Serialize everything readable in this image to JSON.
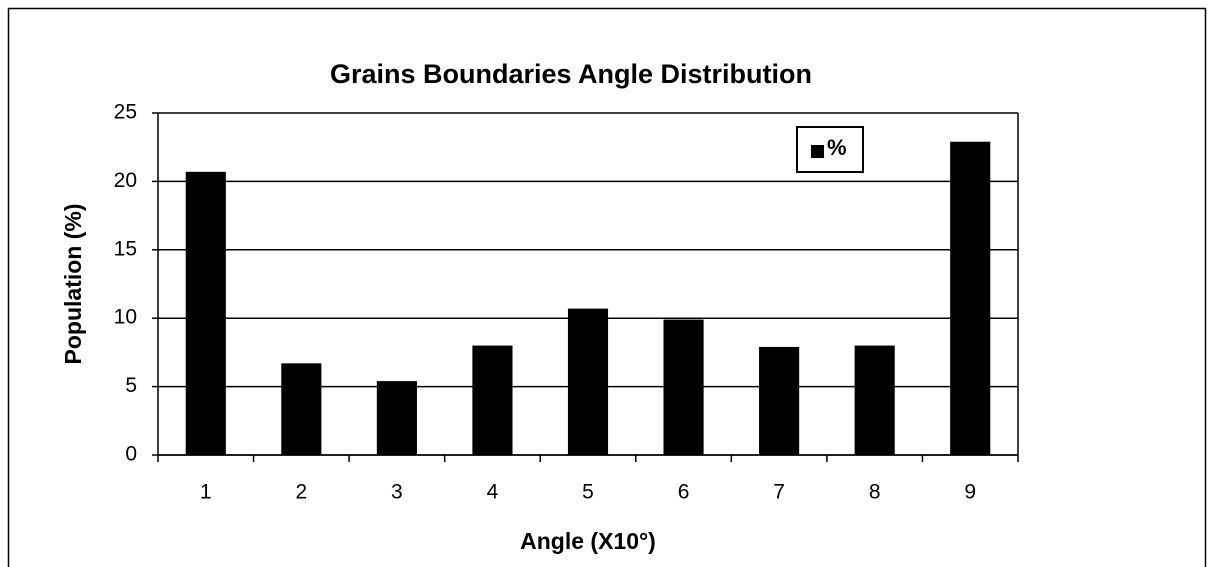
{
  "chart_data": {
    "type": "bar",
    "title": "Grains Boundaries Angle Distribution",
    "x_label": "Angle (X10°)",
    "y_label": "Population (%)",
    "categories": [
      "1",
      "2",
      "3",
      "4",
      "5",
      "6",
      "7",
      "8",
      "9"
    ],
    "series": [
      {
        "name": "%",
        "color": "#000000",
        "values": [
          20.7,
          6.7,
          5.4,
          8.0,
          10.7,
          9.9,
          7.9,
          8.0,
          22.9
        ]
      }
    ],
    "ylim": [
      0,
      25
    ],
    "yticks": [
      0,
      5,
      10,
      15,
      20,
      25
    ],
    "grid": true,
    "legend": "upper right"
  }
}
